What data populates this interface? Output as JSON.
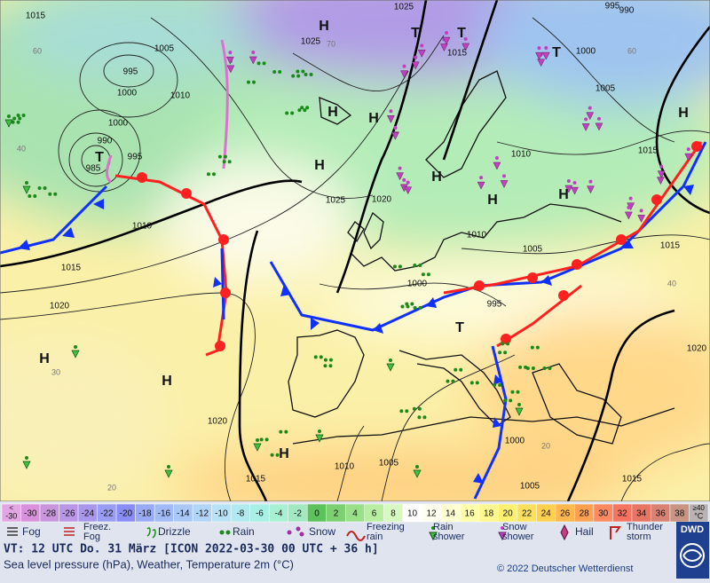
{
  "map": {
    "isobar_labels": [
      "1015",
      "1025",
      "990",
      "995",
      "1005",
      "1025",
      "1015",
      "1000",
      "995",
      "1000",
      "1010",
      "1005",
      "1000",
      "990",
      "995",
      "985",
      "1010",
      "1015",
      "1010",
      "1025",
      "1020",
      "1010",
      "1005",
      "1015",
      "1015",
      "1000",
      "995",
      "1020",
      "1020",
      "1020",
      "1000",
      "1010",
      "1005",
      "1015",
      "1005",
      "1015"
    ],
    "pressure_centers": [
      "H",
      "T",
      "T",
      "T",
      "H",
      "H",
      "H",
      "H",
      "T",
      "H",
      "H",
      "H",
      "T",
      "H",
      "H",
      "H"
    ],
    "temperature_labels": [
      "60",
      "40",
      "30",
      "20",
      "40",
      "20",
      "70",
      "60"
    ]
  },
  "temperature_scale": [
    {
      "top": "<",
      "bottom": "-30",
      "color": "#e2a6e2"
    },
    {
      "label": "-30",
      "color": "#d892dc"
    },
    {
      "label": "-28",
      "color": "#c996de"
    },
    {
      "label": "-26",
      "color": "#ba96e6"
    },
    {
      "label": "-24",
      "color": "#a898ec"
    },
    {
      "label": "-22",
      "color": "#9a9cf2"
    },
    {
      "label": "-20",
      "color": "#8a8cf8"
    },
    {
      "label": "-18",
      "color": "#98aaf6"
    },
    {
      "label": "-16",
      "color": "#a2baf6"
    },
    {
      "label": "-14",
      "color": "#aac8f6"
    },
    {
      "label": "-12",
      "color": "#b2d4f6"
    },
    {
      "label": "-10",
      "color": "#b8e2f6"
    },
    {
      "label": "-8",
      "color": "#b0eaf0"
    },
    {
      "label": "-6",
      "color": "#a8f0e6"
    },
    {
      "label": "-4",
      "color": "#a8f0d2"
    },
    {
      "label": "-2",
      "color": "#a2e8c0"
    },
    {
      "label": "0",
      "color": "#5cc25c"
    },
    {
      "label": "2",
      "color": "#7cd072"
    },
    {
      "label": "4",
      "color": "#9ae08a"
    },
    {
      "label": "6",
      "color": "#b8eea2"
    },
    {
      "label": "8",
      "color": "#d8f8c2"
    },
    {
      "label": "10",
      "color": "#ffffff"
    },
    {
      "label": "12",
      "color": "#fffff0"
    },
    {
      "label": "14",
      "color": "#ffffd2"
    },
    {
      "label": "16",
      "color": "#ffffaa"
    },
    {
      "label": "18",
      "color": "#fff890"
    },
    {
      "label": "20",
      "color": "#fff070"
    },
    {
      "label": "22",
      "color": "#ffe060"
    },
    {
      "label": "24",
      "color": "#ffd050"
    },
    {
      "label": "26",
      "color": "#ffb850"
    },
    {
      "label": "28",
      "color": "#ffa052"
    },
    {
      "label": "30",
      "color": "#ff8a62"
    },
    {
      "label": "32",
      "color": "#f87462"
    },
    {
      "label": "34",
      "color": "#e87464"
    },
    {
      "label": "36",
      "color": "#d88274"
    },
    {
      "label": "38",
      "color": "#c89484"
    },
    {
      "top": "≥40",
      "bottom": "°C",
      "color": "#b8b2b2"
    }
  ],
  "weather_legend": [
    {
      "lines": [
        "Fog"
      ]
    },
    {
      "lines": [
        "Freez.",
        "Fog"
      ]
    },
    {
      "lines": [
        "Drizzle"
      ]
    },
    {
      "lines": [
        "Rain"
      ]
    },
    {
      "lines": [
        "Snow"
      ]
    },
    {
      "lines": [
        "Freezing",
        "rain"
      ]
    },
    {
      "lines": [
        "Rain",
        "shower"
      ]
    },
    {
      "lines": [
        "Snow",
        "shower"
      ]
    },
    {
      "lines": [
        "Hail"
      ]
    },
    {
      "lines": [
        "Thunder",
        "storm"
      ]
    }
  ],
  "footer": {
    "valid_time": "VT: 12 UTC Do.  31 März [ICON 2022-03-30  00 UTC + 36 h]",
    "description": "Sea level pressure (hPa), Weather, Temperature 2m (°C)",
    "copyright": "© 2022 Deutscher Wetterdienst",
    "logo": "DWD"
  }
}
